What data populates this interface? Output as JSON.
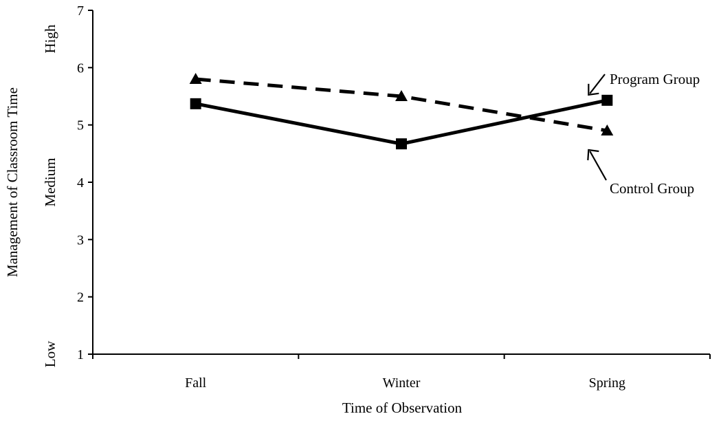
{
  "chart_data": {
    "type": "line",
    "categories": [
      "Fall",
      "Winter",
      "Spring"
    ],
    "series": [
      {
        "name": "Program Group",
        "values": [
          5.37,
          4.67,
          5.43
        ],
        "style": "solid",
        "marker": "square",
        "color": "#000000"
      },
      {
        "name": "Control Group",
        "values": [
          5.8,
          5.5,
          4.9
        ],
        "style": "dashed",
        "marker": "triangle",
        "color": "#000000"
      }
    ],
    "title": "",
    "xlabel": "Time of Observation",
    "ylabel": "Management of Classroom Time",
    "ylim": [
      1,
      7
    ],
    "yticks": [
      "1",
      "2",
      "3",
      "4",
      "5",
      "6",
      "7"
    ],
    "y_band_labels": [
      {
        "text": "Low",
        "value": 1
      },
      {
        "text": "Medium",
        "value": 4
      },
      {
        "text": "High",
        "value": 6.5
      }
    ],
    "grid": false,
    "legend": "callouts"
  }
}
